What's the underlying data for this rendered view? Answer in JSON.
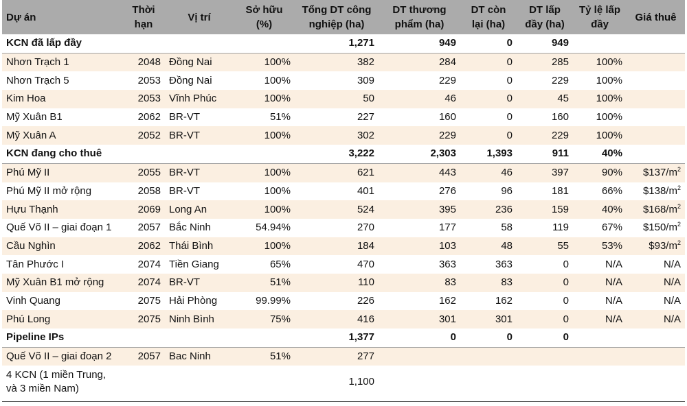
{
  "columns": [
    {
      "key": "project",
      "label": "Dự án",
      "align": "l",
      "width": 175
    },
    {
      "key": "term",
      "label": "Thời hạn",
      "align": "c",
      "width": 62
    },
    {
      "key": "location",
      "label": "Vị trí",
      "align": "c",
      "width": 100
    },
    {
      "key": "ownership",
      "label": "Sở hữu (%)",
      "align": "c",
      "width": 89
    },
    {
      "key": "total_area",
      "label": "Tổng DT công nghiệp (ha)",
      "align": "c",
      "width": 122
    },
    {
      "key": "commercial_area",
      "label": "DT thương phẩm (ha)",
      "align": "c",
      "width": 119
    },
    {
      "key": "remaining_area",
      "label": "DT còn lại (ha)",
      "align": "c",
      "width": 82
    },
    {
      "key": "occupied_area",
      "label": "DT lấp đầy (ha)",
      "align": "c",
      "width": 82
    },
    {
      "key": "occupancy_rate",
      "label": "Tỷ lệ lấp đầy",
      "align": "c",
      "width": 78
    },
    {
      "key": "rent",
      "label": "Giá thuê",
      "align": "c",
      "width": 85
    }
  ],
  "rows": [
    {
      "type": "group",
      "project": "KCN đã lấp đầy",
      "term": "",
      "location": "",
      "ownership": "",
      "total_area": "1,271",
      "commercial_area": "949",
      "remaining_area": "0",
      "occupied_area": "949",
      "occupancy_rate": "",
      "rent": ""
    },
    {
      "type": "item",
      "project": "Nhơn Trạch 1",
      "term": "2048",
      "location": "Đồng Nai",
      "ownership": "100%",
      "total_area": "382",
      "commercial_area": "284",
      "remaining_area": "0",
      "occupied_area": "285",
      "occupancy_rate": "100%",
      "rent": ""
    },
    {
      "type": "item",
      "project": "Nhơn Trạch 5",
      "term": "2053",
      "location": "Đồng Nai",
      "ownership": "100%",
      "total_area": "309",
      "commercial_area": "229",
      "remaining_area": "0",
      "occupied_area": "229",
      "occupancy_rate": "100%",
      "rent": ""
    },
    {
      "type": "item",
      "project": "Kim Hoa",
      "term": "2053",
      "location": "Vĩnh Phúc",
      "ownership": "100%",
      "total_area": "50",
      "commercial_area": "46",
      "remaining_area": "0",
      "occupied_area": "45",
      "occupancy_rate": "100%",
      "rent": ""
    },
    {
      "type": "item",
      "project": "Mỹ Xuân B1",
      "term": "2062",
      "location": "BR-VT",
      "ownership": "51%",
      "total_area": "227",
      "commercial_area": "160",
      "remaining_area": "0",
      "occupied_area": "160",
      "occupancy_rate": "100%",
      "rent": ""
    },
    {
      "type": "item",
      "project": "Mỹ Xuân A",
      "term": "2052",
      "location": "BR-VT",
      "ownership": "100%",
      "total_area": "302",
      "commercial_area": "229",
      "remaining_area": "0",
      "occupied_area": "229",
      "occupancy_rate": "100%",
      "rent": ""
    },
    {
      "type": "group",
      "project": "KCN đang cho thuê",
      "term": "",
      "location": "",
      "ownership": "",
      "total_area": "3,222",
      "commercial_area": "2,303",
      "remaining_area": "1,393",
      "occupied_area": "911",
      "occupancy_rate": "40%",
      "rent": ""
    },
    {
      "type": "item",
      "project": "Phú Mỹ II",
      "term": "2055",
      "location": "BR-VT",
      "ownership": "100%",
      "total_area": "621",
      "commercial_area": "443",
      "remaining_area": "46",
      "occupied_area": "397",
      "occupancy_rate": "90%",
      "rent": "$137/m",
      "rent_sup": "2"
    },
    {
      "type": "item",
      "project": "Phú Mỹ II mở rộng",
      "term": "2058",
      "location": "BR-VT",
      "ownership": "100%",
      "total_area": "401",
      "commercial_area": "276",
      "remaining_area": "96",
      "occupied_area": "181",
      "occupancy_rate": "66%",
      "rent": "$138/m",
      "rent_sup": "2"
    },
    {
      "type": "item",
      "project": "Hựu Thạnh",
      "term": "2069",
      "location": "Long An",
      "ownership": "100%",
      "total_area": "524",
      "commercial_area": "395",
      "remaining_area": "236",
      "occupied_area": "159",
      "occupancy_rate": "40%",
      "rent": "$168/m",
      "rent_sup": "2"
    },
    {
      "type": "item",
      "project": "Quế Võ II – giai đoạn 1",
      "term": "2057",
      "location": "Bắc Ninh",
      "ownership": "54.94%",
      "total_area": "270",
      "commercial_area": "177",
      "remaining_area": "58",
      "occupied_area": "119",
      "occupancy_rate": "67%",
      "rent": "$150/m",
      "rent_sup": "2"
    },
    {
      "type": "item",
      "project": "Cầu Nghìn",
      "term": "2062",
      "location": "Thái Bình",
      "ownership": "100%",
      "total_area": "184",
      "commercial_area": "103",
      "remaining_area": "48",
      "occupied_area": "55",
      "occupancy_rate": "53%",
      "rent": "$93/m",
      "rent_sup": "2"
    },
    {
      "type": "item",
      "project": "Tân Phước I",
      "term": "2074",
      "location": "Tiền Giang",
      "ownership": "65%",
      "total_area": "470",
      "commercial_area": "363",
      "remaining_area": "363",
      "occupied_area": "0",
      "occupancy_rate": "N/A",
      "rent": "N/A"
    },
    {
      "type": "item",
      "project": "Mỹ Xuân B1 mở rộng",
      "term": "2074",
      "location": "BR-VT",
      "ownership": "51%",
      "total_area": "110",
      "commercial_area": "83",
      "remaining_area": "83",
      "occupied_area": "0",
      "occupancy_rate": "N/A",
      "rent": "N/A"
    },
    {
      "type": "item",
      "project": "Vinh Quang",
      "term": "2075",
      "location": "Hải Phòng",
      "ownership": "99.99%",
      "total_area": "226",
      "commercial_area": "162",
      "remaining_area": "162",
      "occupied_area": "0",
      "occupancy_rate": "N/A",
      "rent": "N/A"
    },
    {
      "type": "item",
      "project": "Phú Long",
      "term": "2075",
      "location": "Ninh Bình",
      "ownership": "75%",
      "total_area": "416",
      "commercial_area": "301",
      "remaining_area": "301",
      "occupied_area": "0",
      "occupancy_rate": "N/A",
      "rent": "N/A"
    },
    {
      "type": "group",
      "project": "Pipeline IPs",
      "term": "",
      "location": "",
      "ownership": "",
      "total_area": "1,377",
      "commercial_area": "0",
      "remaining_area": "0",
      "occupied_area": "0",
      "occupancy_rate": "",
      "rent": ""
    },
    {
      "type": "item",
      "project": "Quế Võ II – giai đoạn 2",
      "term": "2057",
      "location": "Bac Ninh",
      "ownership": "51%",
      "total_area": "277",
      "commercial_area": "",
      "remaining_area": "",
      "occupied_area": "",
      "occupancy_rate": "",
      "rent": ""
    },
    {
      "type": "item",
      "tall": true,
      "project": "4 KCN (1 miền Trung, và 3 miền Nam)",
      "term": "",
      "location": "",
      "ownership": "",
      "total_area": "1,100",
      "commercial_area": "",
      "remaining_area": "",
      "occupied_area": "",
      "occupancy_rate": "",
      "rent": ""
    }
  ],
  "stripe_color": "#fbefe1",
  "header_color": "#ababab"
}
